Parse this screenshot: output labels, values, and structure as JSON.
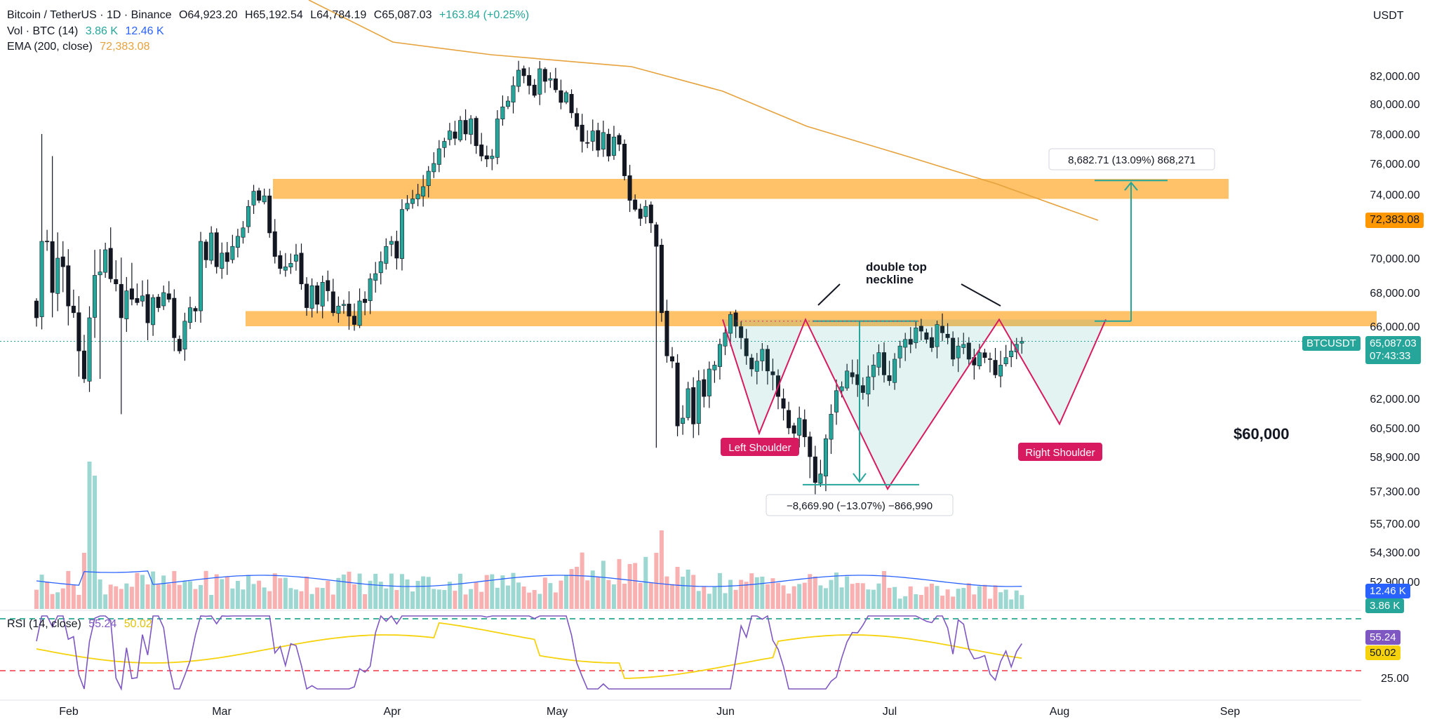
{
  "header": {
    "symbol": "Bitcoin / TetherUS · 1D · Binance",
    "open": "O64,923.20",
    "high": "H65,192.54",
    "low": "L64,784.19",
    "close": "C65,087.03",
    "change": "+163.84 (+0.25%)",
    "currency": "USDT"
  },
  "vol_legend": {
    "label": "Vol · BTC (14)",
    "v1": "3.86 K",
    "v2": "12.46 K"
  },
  "ema_legend": {
    "label": "EMA (200, close)",
    "value": "72,383.08"
  },
  "rsi_legend": {
    "label": "RSI (14, close)",
    "v1": "55.24",
    "v2": "50.02"
  },
  "colors": {
    "up": "#26a69a",
    "down": "#ef5350",
    "zone": "#ffb74d",
    "ema": "#e6a23c",
    "pattern_fill": "#26a69a",
    "pattern_line": "#d81b60",
    "rsi": "#7e57c2",
    "rsi_ma": "#f5d20c"
  },
  "annotations": {
    "double_top_line1": "double top",
    "double_top_line2": "neckline",
    "left_shoulder": "Left Shoulder",
    "right_shoulder": "Right Shoulder",
    "target_60k": "$60,000",
    "measure_up": "8,682.71 (13.09%) 868,271",
    "measure_down": "−8,669.90 (−13.07%) −866,990"
  },
  "price_tags": {
    "ema": "72,383.08",
    "symbol": "BTCUSDT",
    "last": "65,087.03",
    "countdown": "07:43:33",
    "vol1": "12.46 K",
    "vol2": "3.86 K",
    "rsi1": "55.24",
    "rsi2": "50.02"
  },
  "chart_data": {
    "type": "candlestick",
    "title": "Bitcoin / TetherUS · 1D · Binance",
    "y_ticks": [
      "82,000.00",
      "80,000.00",
      "78,000.00",
      "76,000.00",
      "74,000.00",
      "70,000.00",
      "68,000.00",
      "66,000.00",
      "62,000.00",
      "60,500.00",
      "58,900.00",
      "57,300.00",
      "55,700.00",
      "54,300.00",
      "52,900.00"
    ],
    "x_ticks": [
      "Feb",
      "Mar",
      "Apr",
      "May",
      "Jun",
      "Jul",
      "Aug",
      "Sep"
    ],
    "rsi_ticks": [
      "25.00"
    ],
    "rsi_levels": [
      70,
      30
    ],
    "closes": [
      66500,
      71000,
      71000,
      68000,
      70000,
      69500,
      67200,
      66800,
      64500,
      63000,
      66500,
      69000,
      69200,
      70500,
      68800,
      68500,
      66500,
      68100,
      67600,
      67400,
      67800,
      66200,
      67700,
      67100,
      68000,
      67600,
      65300,
      64500,
      66300,
      67100,
      66900,
      71000,
      69900,
      71500,
      69500,
      70300,
      69800,
      70700,
      71300,
      71800,
      73200,
      74200,
      73600,
      73900,
      71500,
      70100,
      69400,
      69500,
      69700,
      70200,
      68500,
      67100,
      68400,
      67300,
      68600,
      68100,
      66800,
      67200,
      67300,
      66600,
      66100,
      67500,
      67400,
      68800,
      69100,
      69800,
      70700,
      71000,
      70000,
      73000,
      73400,
      73700,
      74000,
      74500,
      75500,
      76000,
      77000,
      77500,
      78200,
      77700,
      78900,
      78000,
      79000,
      77200,
      76500,
      76300,
      76500,
      79000,
      79800,
      80200,
      81300,
      82400,
      82000,
      81300,
      80600,
      82500,
      81600,
      81800,
      81000,
      80100,
      80800,
      79400,
      78500,
      77500,
      77400,
      78200,
      76900,
      78100,
      76500,
      77800,
      77300,
      75200,
      73600,
      73000,
      72400,
      73200,
      72100,
      70700,
      66800,
      64200,
      63900,
      60600,
      61000,
      62500,
      60700,
      62900,
      62100,
      63500,
      63700,
      64900,
      65600,
      66700,
      66000,
      65300,
      64200,
      63500,
      63900,
      64600,
      63400,
      63200,
      62100,
      61500,
      60500,
      60200,
      61000,
      60000,
      58900,
      57700,
      58100,
      59900,
      61200,
      62400,
      62600,
      63400,
      63100,
      62700,
      62300,
      63100,
      63700,
      64400,
      63200,
      62900,
      64000,
      64800,
      65200,
      64900,
      65900,
      65700,
      65200,
      64700,
      66100,
      65600,
      65300,
      64000,
      64800,
      64900,
      64000,
      63700,
      64400,
      64100,
      64000,
      63200,
      63700,
      64100,
      64500,
      64900,
      65087
    ],
    "series": [
      {
        "name": "EMA (200, close)",
        "last": 72383.08
      },
      {
        "name": "RSI (14, close)",
        "last": 55.24
      },
      {
        "name": "RSI MA",
        "last": 50.02
      }
    ],
    "levels": {
      "resistance_zone": [
        73700,
        75000
      ],
      "neckline_zone": [
        66000,
        66900
      ],
      "last_price": 65087.03
    },
    "measurements": [
      {
        "text": "8,682.71 (13.09%) 868,271",
        "from": 66300,
        "to": 74900
      },
      {
        "text": "−8,669.90 (−13.07%) −866,990",
        "from": 66300,
        "to": 57600
      }
    ]
  }
}
